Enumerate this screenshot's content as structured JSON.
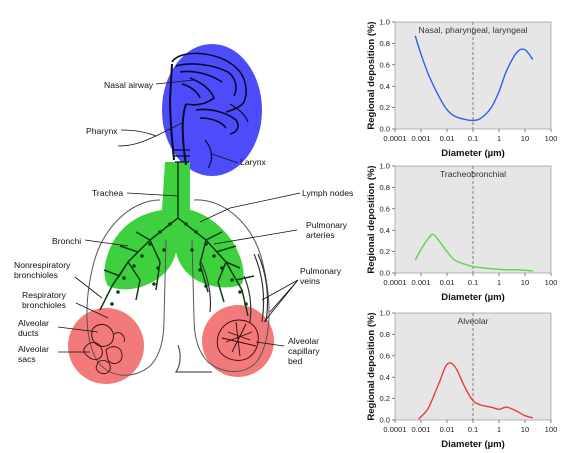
{
  "diagram": {
    "labels": {
      "nasal_airway": "Nasal airway",
      "pharynx": "Pharynx",
      "larynx": "Larynx",
      "trachea": "Trachea",
      "lymph_nodes": "Lymph nodes",
      "bronchi": "Bronchi",
      "pulmonary_arteries": "Pulmonary\narteries",
      "nonrespiratory_bronchioles": "Nonrespiratory\nbronchioles",
      "respiratory_bronchioles": "Respiratory\nbronchioles",
      "pulmonary_veins": "Pulmonary\nveins",
      "alveolar_ducts": "Alveolar\nducts",
      "alveolar_sacs": "Alveolar\nsacs",
      "alveolar_capillary_bed": "Alveolar\ncapillary\nbed"
    },
    "colors": {
      "head_region": "#3d3dfa",
      "tracheobronchial_region": "#3fd03f",
      "alveolar_region": "#f26b6b"
    }
  },
  "chart_data": [
    {
      "type": "line",
      "title": "Nasal, pharyngeal, laryngeal",
      "ylabel": "Regional deposition (%)",
      "xlabel": "Diameter (µm)",
      "xscale": "log",
      "xlim": [
        0.0001,
        100
      ],
      "ylim": [
        0,
        1.0
      ],
      "x_ticks": [
        "0.0001",
        "0.001",
        "0.01",
        "0.1",
        "1",
        "10",
        "100"
      ],
      "y_ticks": [
        "0.0",
        "0.2",
        "0.4",
        "0.6",
        "0.8",
        "1.0"
      ],
      "color": "#2f5ef0",
      "reference_line_x": 0.1,
      "x": [
        0.0006,
        0.001,
        0.002,
        0.005,
        0.01,
        0.02,
        0.05,
        0.1,
        0.2,
        0.5,
        1,
        2,
        5,
        10,
        20
      ],
      "y": [
        0.87,
        0.7,
        0.5,
        0.3,
        0.18,
        0.12,
        0.09,
        0.08,
        0.1,
        0.2,
        0.35,
        0.55,
        0.72,
        0.74,
        0.65
      ]
    },
    {
      "type": "line",
      "title": "Tracheobronchial",
      "ylabel": "Regional deposition (%)",
      "xlabel": "Diameter (µm)",
      "xscale": "log",
      "xlim": [
        0.0001,
        100
      ],
      "ylim": [
        0,
        1.0
      ],
      "x_ticks": [
        "0.0001",
        "0.001",
        "0.01",
        "0.1",
        "1",
        "10",
        "100"
      ],
      "y_ticks": [
        "0.0",
        "0.2",
        "0.4",
        "0.6",
        "0.8",
        "1.0"
      ],
      "color": "#5ed44a",
      "reference_line_x": 0.1,
      "x": [
        0.0006,
        0.001,
        0.002,
        0.003,
        0.005,
        0.01,
        0.02,
        0.05,
        0.1,
        0.2,
        0.5,
        1,
        2,
        5,
        10,
        20
      ],
      "y": [
        0.12,
        0.22,
        0.33,
        0.36,
        0.3,
        0.2,
        0.12,
        0.08,
        0.06,
        0.05,
        0.04,
        0.035,
        0.03,
        0.03,
        0.025,
        0.02
      ]
    },
    {
      "type": "line",
      "title": "Alveolar",
      "ylabel": "Regional deposition (%)",
      "xlabel": "Diameter (µm)",
      "xscale": "log",
      "xlim": [
        0.0001,
        100
      ],
      "ylim": [
        0,
        1.0
      ],
      "x_ticks": [
        "0.0001",
        "0.001",
        "0.01",
        "0.1",
        "1",
        "10",
        "100"
      ],
      "y_ticks": [
        "0.0",
        "0.2",
        "0.4",
        "0.6",
        "0.8",
        "1.0"
      ],
      "color": "#ee3a3a",
      "reference_line_x": 0.1,
      "x": [
        0.0008,
        0.001,
        0.002,
        0.005,
        0.01,
        0.02,
        0.05,
        0.1,
        0.2,
        0.5,
        1,
        2,
        5,
        10,
        20
      ],
      "y": [
        0.01,
        0.03,
        0.12,
        0.35,
        0.52,
        0.5,
        0.3,
        0.18,
        0.14,
        0.12,
        0.1,
        0.12,
        0.08,
        0.04,
        0.02
      ]
    }
  ]
}
